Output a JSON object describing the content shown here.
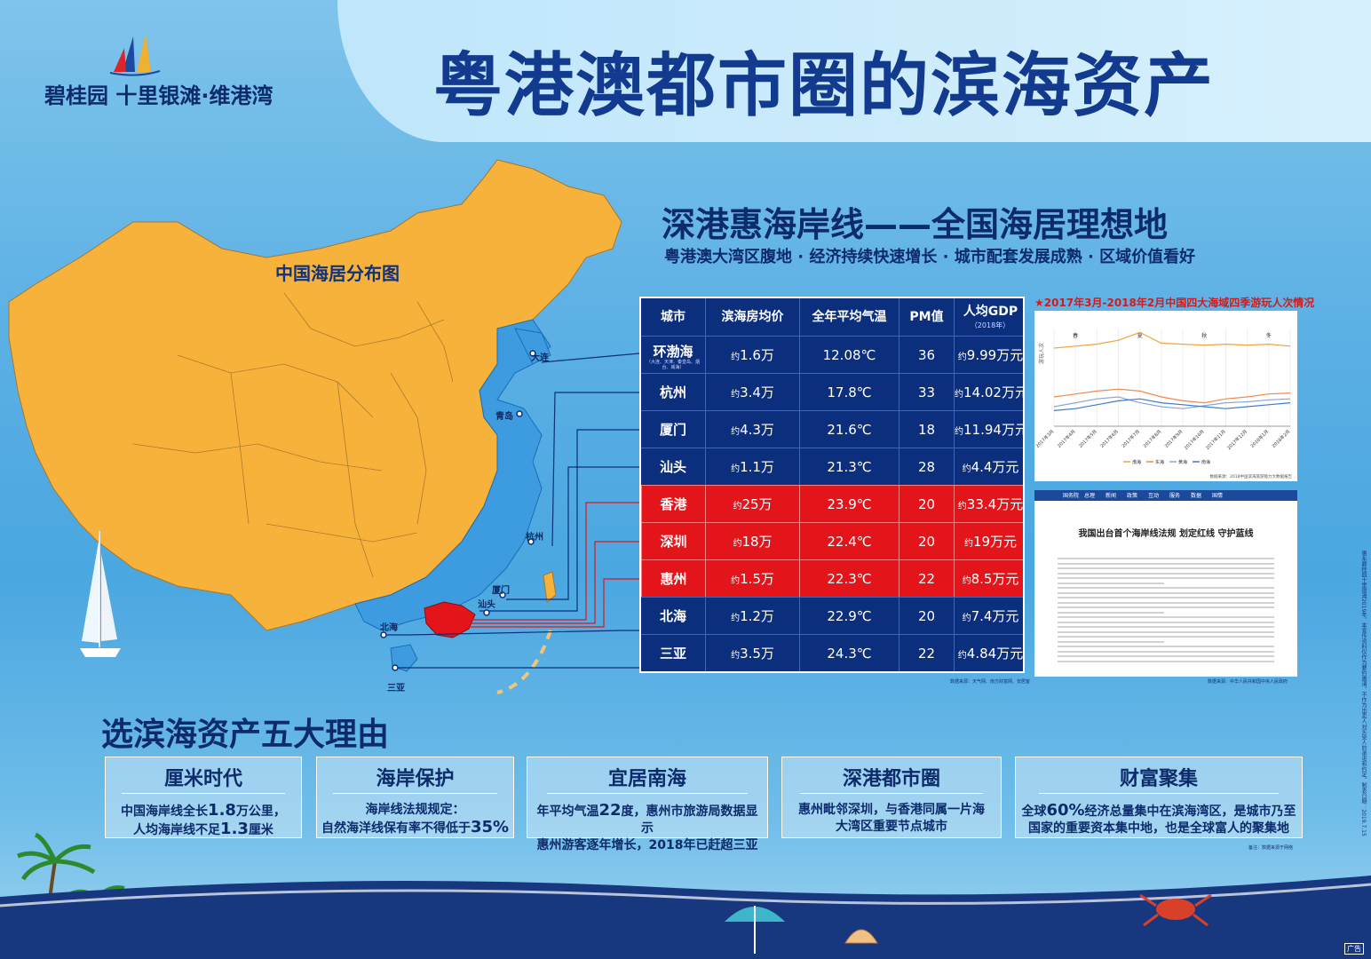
{
  "brand": {
    "name_line": "碧桂园 十里银滩·维港湾",
    "sub": ""
  },
  "header": {
    "title": "粤港澳都市圈的滨海资产"
  },
  "map": {
    "title": "中国海居分布图",
    "city_labels": [
      "大连",
      "青岛",
      "汕头",
      "杭州",
      "厦门",
      "北海",
      "三亚"
    ],
    "colors": {
      "inland": "#f7b23b",
      "coastal": "#3d9be0",
      "greater_bay": "#e3141a"
    }
  },
  "section": {
    "subtitle": "深港惠海岸线——全国海居理想地",
    "tagline": "粤港澳大湾区腹地 · 经济持续快速增长 · 城市配套发展成熟 · 区域价值看好"
  },
  "table": {
    "headers": [
      "城市",
      "滨海房均价",
      "全年平均气温",
      "PM值",
      "人均GDP"
    ],
    "gdp_year": "（2018年）",
    "region_note": "（大连、天津、秦皇岛、烟台、威海）",
    "price_prefix": "约",
    "rows": [
      {
        "city": "环渤海",
        "price": "1.6万",
        "temp": "12.08℃",
        "pm": "36",
        "gdp": "9.99万元",
        "highlight": false
      },
      {
        "city": "杭州",
        "price": "3.4万",
        "temp": "17.8℃",
        "pm": "33",
        "gdp": "14.02万元",
        "highlight": false
      },
      {
        "city": "厦门",
        "price": "4.3万",
        "temp": "21.6℃",
        "pm": "18",
        "gdp": "11.94万元",
        "highlight": false
      },
      {
        "city": "汕头",
        "price": "1.1万",
        "temp": "21.3℃",
        "pm": "28",
        "gdp": "4.4万元",
        "highlight": false
      },
      {
        "city": "香港",
        "price": "25万",
        "temp": "23.9℃",
        "pm": "20",
        "gdp": "33.4万元",
        "highlight": true
      },
      {
        "city": "深圳",
        "price": "18万",
        "temp": "22.4℃",
        "pm": "20",
        "gdp": "19万元",
        "highlight": true
      },
      {
        "city": "惠州",
        "price": "1.5万",
        "temp": "22.3℃",
        "pm": "22",
        "gdp": "8.5万元",
        "highlight": true
      },
      {
        "city": "北海",
        "price": "1.2万",
        "temp": "22.9℃",
        "pm": "20",
        "gdp": "7.4万元",
        "highlight": false
      },
      {
        "city": "三亚",
        "price": "3.5万",
        "temp": "24.3℃",
        "pm": "22",
        "gdp": "4.84万元",
        "highlight": false
      }
    ],
    "source": "数据来源：天气网、南方财富网、安居客"
  },
  "chart_caption": "★2017年3月-2018年2月中国四大海域四季游玩人次情况",
  "chart_data": {
    "type": "line",
    "title": "",
    "ylabel": "游玩人次",
    "xlabel": "",
    "seasons": [
      "春",
      "夏",
      "秋",
      "冬"
    ],
    "categories": [
      "2017年3月",
      "2017年4月",
      "2017年5月",
      "2017年6月",
      "2017年7月",
      "2017年8月",
      "2017年9月",
      "2017年10月",
      "2017年11月",
      "2017年12月",
      "2018年1月",
      "2018年2月"
    ],
    "series": [
      {
        "name": "渤海",
        "color": "#f2a33a",
        "values": [
          80,
          82,
          84,
          88,
          96,
          85,
          84,
          83,
          84,
          83,
          84,
          82
        ]
      },
      {
        "name": "东海",
        "color": "#f08a4b",
        "values": [
          30,
          33,
          36,
          38,
          36,
          30,
          26,
          24,
          28,
          30,
          33,
          34
        ]
      },
      {
        "name": "黄海",
        "color": "#8aa6d6",
        "values": [
          20,
          24,
          28,
          30,
          24,
          20,
          18,
          21,
          24,
          25,
          27,
          28
        ]
      },
      {
        "name": "南海",
        "color": "#3a7bd5",
        "values": [
          16,
          18,
          22,
          26,
          28,
          24,
          22,
          20,
          18,
          20,
          22,
          24
        ]
      }
    ],
    "ylim": [
      0,
      100
    ],
    "legend_position": "bottom",
    "source": "数据来源：2018中国滨海旅游能力大数据报告"
  },
  "news": {
    "nav": [
      "国务院",
      "总理",
      "新闻",
      "政策",
      "互动",
      "服务",
      "数据",
      "国情"
    ],
    "title": "我国出台首个海岸线法规 划定红线 守护蓝线",
    "source": "数据来源：中华人民共和国中央人民政府"
  },
  "reasons": {
    "title": "选滨海资产五大理由",
    "cards": [
      {
        "head": "厘米时代",
        "line1_pre": "中国海岸线全长",
        "line1_big": "1.8",
        "line1_post": "万公里，",
        "line2_pre": "人均海岸线不足",
        "line2_big": "1.3",
        "line2_post": "厘米"
      },
      {
        "head": "海岸保护",
        "line1_pre": "海岸线法规规定：",
        "line1_big": "",
        "line1_post": "",
        "line2_pre": "自然海洋线保有率不得低于",
        "line2_big": "35%",
        "line2_post": ""
      },
      {
        "head": "宜居南海",
        "line1_pre": "年平均气温",
        "line1_big": "22",
        "line1_post": "度，惠州市旅游局数据显示",
        "line2_pre": "惠州游客逐年增长，2018年已赶超三亚",
        "line2_big": "",
        "line2_post": ""
      },
      {
        "head": "深港都市圈",
        "line1_pre": "惠州毗邻深圳，与香港同属一片海",
        "line1_big": "",
        "line1_post": "",
        "line2_pre": "大湾区重要节点城市",
        "line2_big": "",
        "line2_post": ""
      },
      {
        "head": "财富聚集",
        "line1_pre": "全球",
        "line1_big": "60%",
        "line1_post": "经济总量集中在滨海湾区，是城市乃至",
        "line2_pre": "国家的重要资本集中地，也是全球富人的聚集地",
        "line2_big": "",
        "line2_post": ""
      }
    ],
    "note": "备注：数据来源于网络"
  },
  "side_text": "惠东碧桂园十里银滩2019年，本宣传资料仅作为要约邀请，不作为出卖人对买受人的承诺和约定。制表日期：2019.7.15",
  "ad_tag": "广告"
}
